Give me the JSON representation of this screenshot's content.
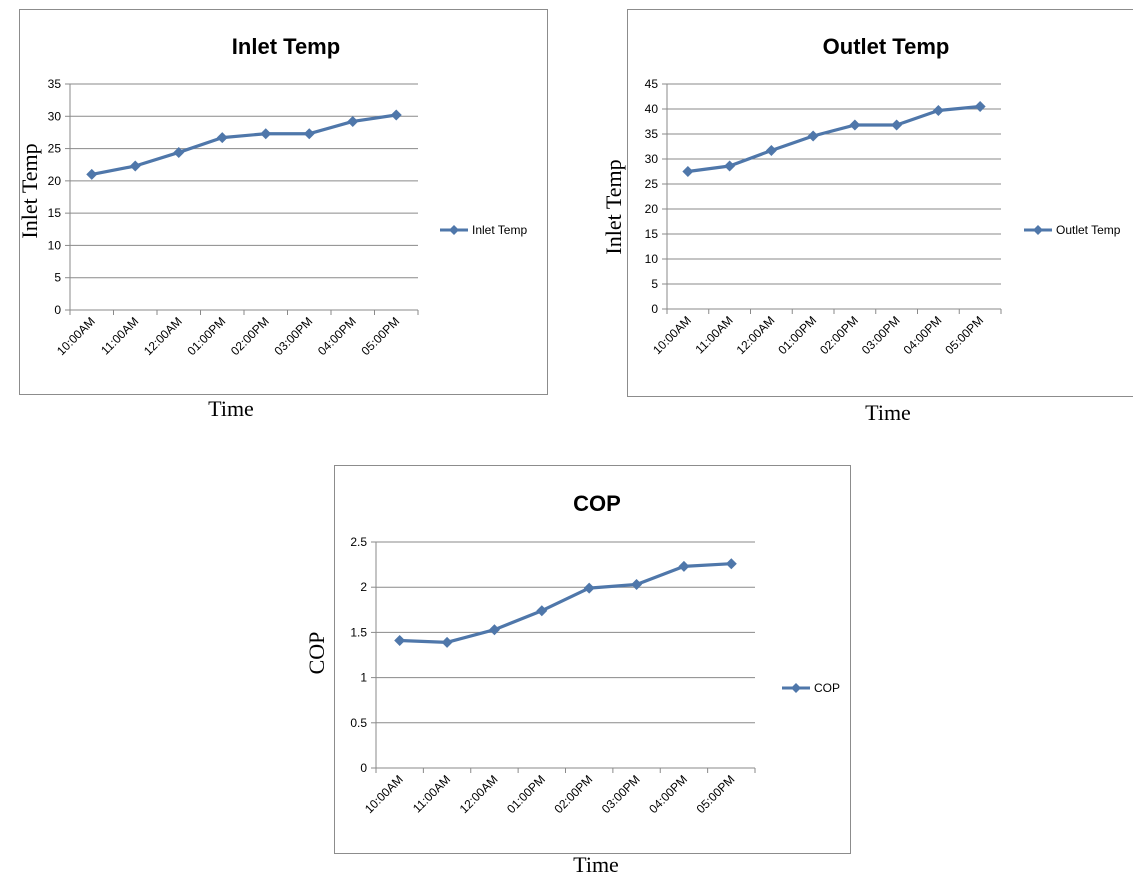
{
  "chart_data": [
    {
      "type": "line",
      "title": "Inlet Temp",
      "xlabel": "Time",
      "ylabel": "Inlet Temp",
      "categories": [
        "10:00AM",
        "11:00AM",
        "12:00AM",
        "01:00PM",
        "02:00PM",
        "03:00PM",
        "04:00PM",
        "05:00PM"
      ],
      "yticks": [
        "0",
        "5",
        "10",
        "15",
        "20",
        "25",
        "30",
        "35"
      ],
      "ylim": [
        0,
        35
      ],
      "grid": true,
      "legend_position": "right",
      "series": [
        {
          "name": "Inlet Temp",
          "values": [
            21.0,
            22.3,
            24.4,
            26.7,
            27.3,
            27.3,
            29.2,
            30.2
          ],
          "color": "#4f77aa",
          "marker": "diamond"
        }
      ]
    },
    {
      "type": "line",
      "title": "Outlet Temp",
      "xlabel": "Time",
      "ylabel": "Inlet Temp",
      "categories": [
        "10:00AM",
        "11:00AM",
        "12:00AM",
        "01:00PM",
        "02:00PM",
        "03:00PM",
        "04:00PM",
        "05:00PM"
      ],
      "yticks": [
        "0",
        "5",
        "10",
        "15",
        "20",
        "25",
        "30",
        "35",
        "40",
        "45"
      ],
      "ylim": [
        0,
        45
      ],
      "grid": true,
      "legend_position": "right",
      "series": [
        {
          "name": "Outlet Temp",
          "values": [
            27.5,
            28.6,
            31.7,
            34.6,
            36.8,
            36.8,
            39.7,
            40.5
          ],
          "color": "#4f77aa",
          "marker": "diamond"
        }
      ]
    },
    {
      "type": "line",
      "title": "COP",
      "xlabel": "Time",
      "ylabel": "COP",
      "categories": [
        "10:00AM",
        "11:00AM",
        "12:00AM",
        "01:00PM",
        "02:00PM",
        "03:00PM",
        "04:00PM",
        "05:00PM"
      ],
      "yticks": [
        "0",
        "0.5",
        "1",
        "1.5",
        "2",
        "2.5"
      ],
      "ylim": [
        0,
        2.5
      ],
      "grid": true,
      "legend_position": "right",
      "series": [
        {
          "name": "COP",
          "values": [
            1.41,
            1.39,
            1.53,
            1.74,
            1.99,
            2.03,
            2.23,
            2.26
          ],
          "color": "#4f77aa",
          "marker": "diamond"
        }
      ]
    }
  ]
}
